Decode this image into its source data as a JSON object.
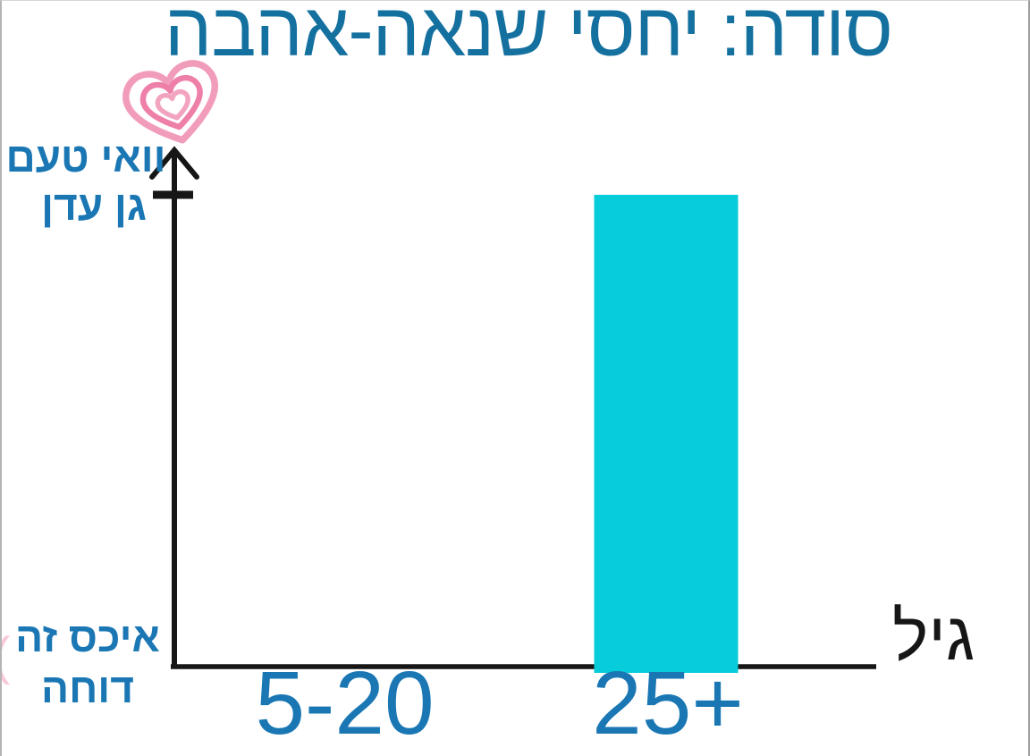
{
  "colors": {
    "title-blue": "#14709f",
    "label-blue": "#1a77b4",
    "bar-cyan": "#07cdda",
    "axis-black": "#161616",
    "heart-pink": "#f29cbb",
    "heart-pink-mid": "#ee7fa9"
  },
  "chart_data": {
    "type": "bar",
    "title": "סודה: יחסי שנאה-אהבה",
    "xlabel": "גיל",
    "ylabel": "",
    "categories": [
      "5-20",
      "25+"
    ],
    "values": [
      0,
      1
    ],
    "ylim": [
      0,
      1
    ],
    "bar_color": "#07cdda",
    "grid": false,
    "legend": "none",
    "y_axis_annotations": {
      "max_label": "וואי טעם גן עדן",
      "min_label": "איכס זה דוחה"
    },
    "notes": "hand-drawn meme chart; single cyan bar at category 25+ reaching the top tick; no bar for 5-20"
  },
  "labels": {
    "y_top_line1": "וואי טעם",
    "y_top_line2": "גן עדן",
    "y_bottom_line1": "איכס זה",
    "y_bottom_line2": "דוחה",
    "stray_mark": "("
  }
}
